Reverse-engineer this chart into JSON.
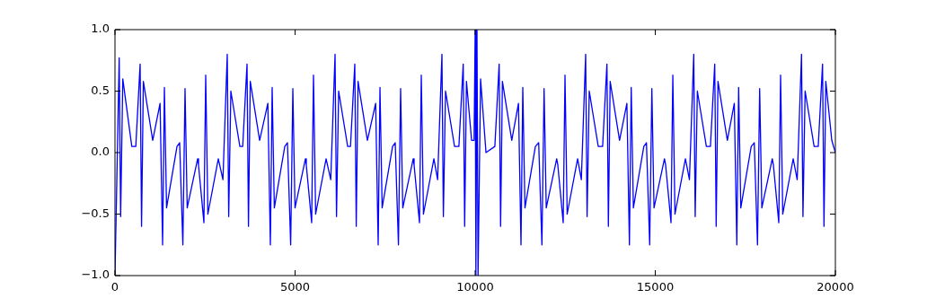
{
  "chart_data": {
    "type": "line",
    "xlim": [
      0,
      20000
    ],
    "ylim": [
      -1,
      1
    ],
    "xticks": [
      0,
      5000,
      10000,
      15000,
      20000
    ],
    "yticks": [
      {
        "value": -1,
        "label": "−1.0"
      },
      {
        "value": -0.5,
        "label": "−0.5"
      },
      {
        "value": 0,
        "label": "0.0"
      },
      {
        "value": 0.5,
        "label": "0.5"
      },
      {
        "value": 1,
        "label": "1.0"
      }
    ],
    "grid": false,
    "series": [
      {
        "color": "#0000ff",
        "x": [
          0,
          117,
          157,
          217,
          467,
          578,
          698,
          738,
          788,
          1048,
          1252,
          1322,
          1372,
          1432,
          1722,
          1795,
          1885,
          1945,
          2005,
          2295,
          2319,
          2469,
          2519,
          2579,
          2869,
          2997,
          3117,
          3157,
          3217,
          3467,
          3546,
          3666,
          3706,
          3756,
          4016,
          4244,
          4314,
          4364,
          4424,
          4714,
          4788,
          4878,
          4938,
          4998,
          5288,
          5311,
          5461,
          5511,
          5571,
          5861,
          5990,
          6110,
          6150,
          6210,
          6460,
          6538,
          6658,
          6698,
          6748,
          7008,
          7237,
          7307,
          7357,
          7417,
          7707,
          7780,
          7870,
          7930,
          7990,
          8280,
          8304,
          8454,
          8504,
          8564,
          8854,
          8957,
          9077,
          9117,
          9177,
          9427,
          9548,
          9668,
          9708,
          9758,
          9900,
          9970,
          10000,
          10020,
          10050,
          10080,
          10150,
          10300,
          10546,
          10666,
          10706,
          10756,
          11016,
          11202,
          11272,
          11322,
          11382,
          11672,
          11763,
          11853,
          11913,
          11973,
          12263,
          12294,
          12444,
          12494,
          12554,
          12844,
          12947,
          13067,
          13107,
          13167,
          13417,
          13538,
          13658,
          13698,
          13748,
          14008,
          14212,
          14282,
          14332,
          14392,
          14682,
          14755,
          14845,
          14905,
          14965,
          15255,
          15287,
          15437,
          15487,
          15547,
          15837,
          15948,
          16068,
          16108,
          16168,
          16418,
          16531,
          16651,
          16691,
          16741,
          17001,
          17194,
          17264,
          17314,
          17374,
          17664,
          17748,
          17838,
          17898,
          17958,
          18248,
          18279,
          18429,
          18479,
          18539,
          18829,
          18940,
          19060,
          19100,
          19160,
          19410,
          19524,
          19644,
          19684,
          19734,
          19900,
          20000
        ],
        "values": [
          -1,
          0.77,
          -0.52,
          0.6,
          0.05,
          0.05,
          0.72,
          -0.6,
          0.58,
          0.1,
          0.4,
          -0.75,
          0.53,
          -0.45,
          0.05,
          0.08,
          -0.75,
          0.52,
          -0.45,
          -0.05,
          -0.1,
          -0.57,
          0.63,
          -0.5,
          -0.05,
          -0.22,
          0.8,
          -0.52,
          0.5,
          0.05,
          0.05,
          0.72,
          -0.6,
          0.58,
          0.1,
          0.4,
          -0.75,
          0.53,
          -0.45,
          0.05,
          0.08,
          -0.75,
          0.52,
          -0.45,
          -0.05,
          -0.1,
          -0.57,
          0.63,
          -0.5,
          -0.05,
          -0.22,
          0.8,
          -0.52,
          0.5,
          0.05,
          0.05,
          0.72,
          -0.6,
          0.58,
          0.1,
          0.4,
          -0.75,
          0.53,
          -0.45,
          0.05,
          0.08,
          -0.75,
          0.52,
          -0.45,
          -0.05,
          -0.1,
          -0.57,
          0.63,
          -0.5,
          -0.05,
          -0.22,
          0.8,
          -0.52,
          0.5,
          0.05,
          0.05,
          0.72,
          -0.6,
          0.58,
          0.1,
          0.1,
          1,
          -1,
          1,
          -1,
          0.6,
          0,
          0.05,
          0.72,
          -0.6,
          0.58,
          0.1,
          0.4,
          -0.75,
          0.53,
          -0.45,
          0.05,
          0.08,
          -0.75,
          0.52,
          -0.45,
          -0.05,
          -0.1,
          -0.57,
          0.63,
          -0.5,
          -0.05,
          -0.22,
          0.8,
          -0.52,
          0.5,
          0.05,
          0.05,
          0.72,
          -0.6,
          0.58,
          0.1,
          0.4,
          -0.75,
          0.53,
          -0.45,
          0.05,
          0.08,
          -0.75,
          0.52,
          -0.45,
          -0.05,
          -0.1,
          -0.57,
          0.63,
          -0.5,
          -0.05,
          -0.22,
          0.8,
          -0.52,
          0.5,
          0.05,
          0.05,
          0.72,
          -0.6,
          0.58,
          0.1,
          0.4,
          -0.75,
          0.53,
          -0.45,
          0.05,
          0.08,
          -0.75,
          0.52,
          -0.45,
          -0.05,
          -0.1,
          -0.57,
          0.63,
          -0.5,
          -0.05,
          -0.22,
          0.8,
          -0.52,
          0.5,
          0.05,
          0.05,
          0.72,
          -0.6,
          0.58,
          0.1,
          0
        ]
      }
    ]
  }
}
